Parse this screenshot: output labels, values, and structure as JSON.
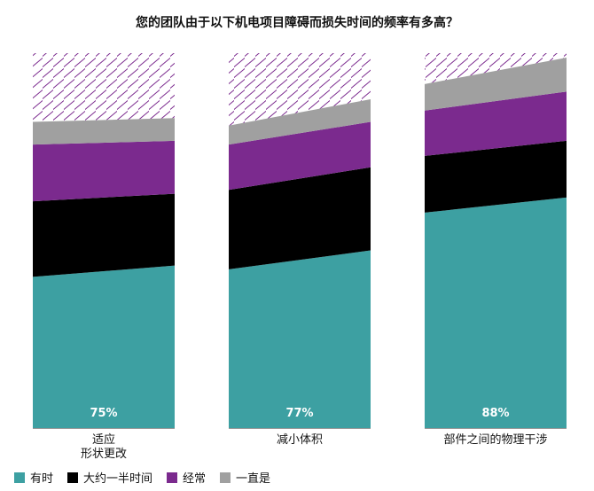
{
  "chart_data": {
    "type": "area",
    "title": "您的团队由于以下机电项目障碍而损失时间的频率有多高？",
    "categories": [
      "适应\n形状更改",
      "减小体积",
      "部件之间的物理干涉"
    ],
    "totals": [
      "75%",
      "77%",
      "88%"
    ],
    "ylim": [
      0,
      100
    ],
    "series": [
      {
        "name": "有时",
        "color": "#3da0a2",
        "values": [
          [
            40,
            43
          ],
          [
            42,
            47
          ],
          [
            57,
            61
          ]
        ]
      },
      {
        "name": "大约一半时间",
        "color": "#000000",
        "values": [
          [
            20,
            19
          ],
          [
            21,
            22
          ],
          [
            15,
            15
          ]
        ]
      },
      {
        "name": "经常",
        "color": "#7b2a8e",
        "values": [
          [
            15,
            14
          ],
          [
            12,
            12
          ],
          [
            12,
            13
          ]
        ]
      },
      {
        "name": "一直是",
        "color": "#a0a0a0",
        "values": [
          [
            6,
            6
          ],
          [
            5,
            6
          ],
          [
            7,
            9
          ]
        ]
      }
    ],
    "hatch_color": "#7b2a8e"
  }
}
